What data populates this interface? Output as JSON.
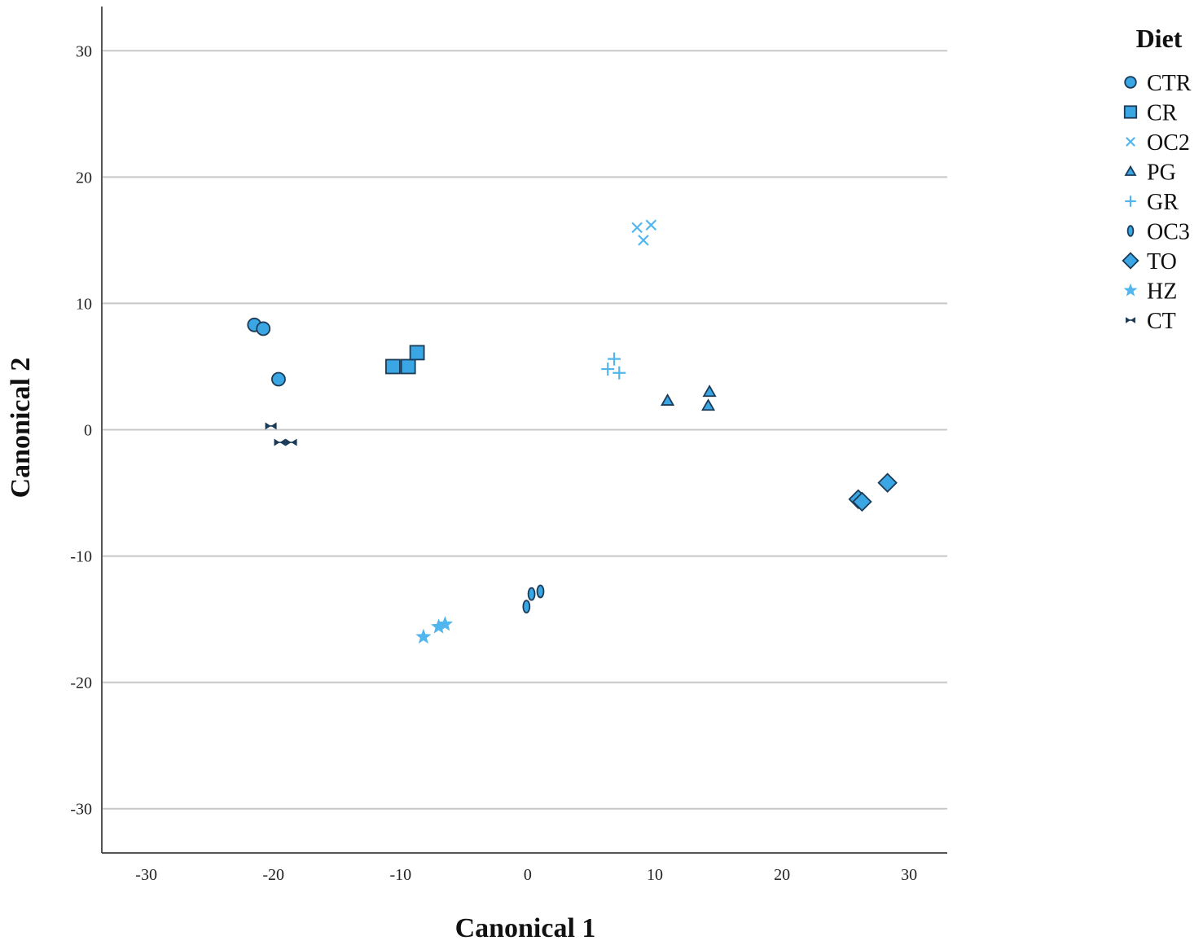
{
  "chart_data": {
    "type": "scatter",
    "xlabel": "Canonical 1",
    "ylabel": "Canonical 2",
    "xlim": [
      -33.5,
      33
    ],
    "ylim": [
      -33.5,
      33.5
    ],
    "xticks": [
      -30,
      -20,
      -10,
      0,
      10,
      20,
      30
    ],
    "yticks": [
      -30,
      -20,
      -10,
      0,
      10,
      20,
      30
    ],
    "xtick_labels": [
      "-30",
      "-20",
      "-10",
      "0",
      "10",
      "20",
      "30"
    ],
    "ytick_labels": [
      "-30",
      "-20",
      "-10",
      "0",
      "10",
      "20",
      "30"
    ],
    "grid": "horizontal",
    "legend": {
      "title": "Diet",
      "placement": "right"
    },
    "colors": {
      "fill": "#3aa6e3",
      "light": "#52b6ee",
      "dark": "#1c3b57",
      "grid": "#c8c8c8",
      "axis": "#555555"
    },
    "series": [
      {
        "name": "CTR",
        "marker": "circle",
        "points": [
          [
            -21.5,
            8.3
          ],
          [
            -20.8,
            8.0
          ],
          [
            -19.6,
            4.0
          ]
        ]
      },
      {
        "name": "CR",
        "marker": "square",
        "points": [
          [
            -10.6,
            5.0
          ],
          [
            -9.4,
            5.0
          ],
          [
            -8.7,
            6.1
          ]
        ]
      },
      {
        "name": "OC2",
        "marker": "x",
        "points": [
          [
            8.6,
            16.0
          ],
          [
            9.7,
            16.2
          ],
          [
            9.1,
            15.0
          ]
        ]
      },
      {
        "name": "PG",
        "marker": "triangle",
        "points": [
          [
            11.0,
            2.3
          ],
          [
            14.3,
            3.0
          ],
          [
            14.2,
            1.9
          ]
        ]
      },
      {
        "name": "GR",
        "marker": "plus",
        "points": [
          [
            6.3,
            4.8
          ],
          [
            6.8,
            5.6
          ],
          [
            7.2,
            4.5
          ]
        ]
      },
      {
        "name": "OC3",
        "marker": "ellipse",
        "points": [
          [
            -0.1,
            -14.0
          ],
          [
            0.3,
            -13.0
          ],
          [
            1.0,
            -12.8
          ]
        ]
      },
      {
        "name": "TO",
        "marker": "diamond",
        "points": [
          [
            26.0,
            -5.5
          ],
          [
            26.3,
            -5.7
          ],
          [
            28.3,
            -4.2
          ]
        ]
      },
      {
        "name": "HZ",
        "marker": "star",
        "points": [
          [
            -8.2,
            -16.4
          ],
          [
            -7.0,
            -15.6
          ],
          [
            -6.5,
            -15.4
          ]
        ]
      },
      {
        "name": "CT",
        "marker": "bowtie",
        "points": [
          [
            -20.2,
            0.3
          ],
          [
            -19.5,
            -1.0
          ],
          [
            -18.6,
            -1.0
          ]
        ]
      }
    ]
  }
}
